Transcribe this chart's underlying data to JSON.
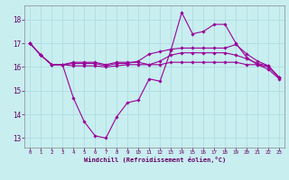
{
  "xlabel": "Windchill (Refroidissement éolien,°C)",
  "background_color": "#c8eef0",
  "grid_color": "#b0dde0",
  "line_color": "#990099",
  "x_ticks": [
    0,
    1,
    2,
    3,
    4,
    5,
    6,
    7,
    8,
    9,
    10,
    11,
    12,
    13,
    14,
    15,
    16,
    17,
    18,
    19,
    20,
    21,
    22,
    23
  ],
  "y_ticks": [
    13,
    14,
    15,
    16,
    17,
    18
  ],
  "ylim": [
    12.6,
    18.6
  ],
  "xlim": [
    -0.5,
    23.5
  ],
  "lines": [
    [
      17.0,
      16.5,
      16.1,
      16.1,
      14.7,
      13.7,
      13.1,
      13.0,
      13.9,
      14.5,
      14.6,
      15.5,
      15.4,
      16.7,
      18.3,
      17.4,
      17.5,
      17.8,
      17.8,
      17.0,
      16.4,
      16.1,
      15.9,
      15.5
    ],
    [
      17.0,
      16.5,
      16.1,
      16.1,
      16.05,
      16.05,
      16.05,
      16.0,
      16.05,
      16.1,
      16.1,
      16.1,
      16.25,
      16.5,
      16.6,
      16.6,
      16.6,
      16.6,
      16.6,
      16.5,
      16.35,
      16.15,
      16.05,
      15.55
    ],
    [
      17.0,
      16.5,
      16.1,
      16.1,
      16.15,
      16.15,
      16.15,
      16.05,
      16.15,
      16.15,
      16.25,
      16.55,
      16.65,
      16.75,
      16.8,
      16.8,
      16.8,
      16.8,
      16.8,
      16.95,
      16.55,
      16.25,
      16.05,
      15.55
    ],
    [
      17.0,
      16.5,
      16.1,
      16.1,
      16.2,
      16.2,
      16.2,
      16.1,
      16.2,
      16.2,
      16.2,
      16.1,
      16.1,
      16.2,
      16.2,
      16.2,
      16.2,
      16.2,
      16.2,
      16.2,
      16.1,
      16.1,
      16.0,
      15.55
    ]
  ]
}
